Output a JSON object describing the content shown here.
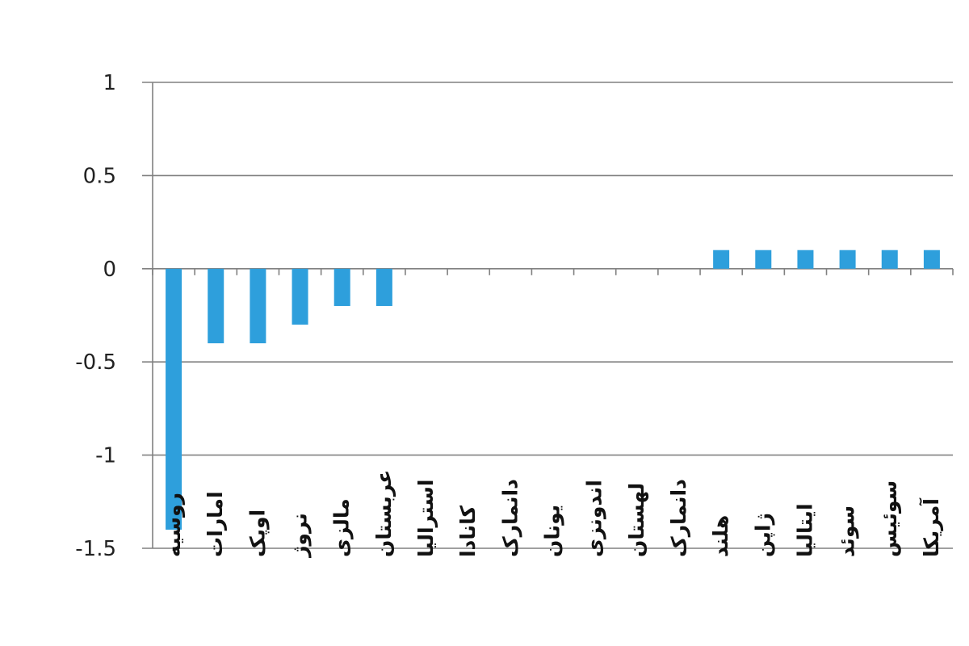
{
  "chart_data": {
    "type": "bar",
    "title": "",
    "xlabel": "",
    "ylabel": "",
    "categories": [
      "روسیه",
      "امارات",
      "اوپک",
      "نروژ",
      "مالزی",
      "عربستان",
      "استرالیا",
      "کانادا",
      "دانمارک",
      "یونان",
      "اندونزی",
      "لهستان",
      "دانمارک",
      "هلند",
      "ژاپن",
      "ایتالیا",
      "سوئد",
      "سوئیس",
      "آمریکا"
    ],
    "values": [
      -1.4,
      -0.4,
      -0.4,
      -0.3,
      -0.2,
      -0.2,
      0,
      0,
      0,
      0,
      0,
      0,
      0,
      0.1,
      0.1,
      0.1,
      0.1,
      0.1,
      0.1
    ],
    "ylim": [
      -1.5,
      1
    ],
    "yticks": [
      1,
      0.5,
      0,
      -0.5,
      -1,
      -1.5
    ],
    "ytick_labels": [
      "1",
      "0.5",
      "0",
      "-0.5",
      "-1",
      "-1.5"
    ],
    "grid": true,
    "bar_color": "#2e9fdc",
    "legend": "none"
  }
}
